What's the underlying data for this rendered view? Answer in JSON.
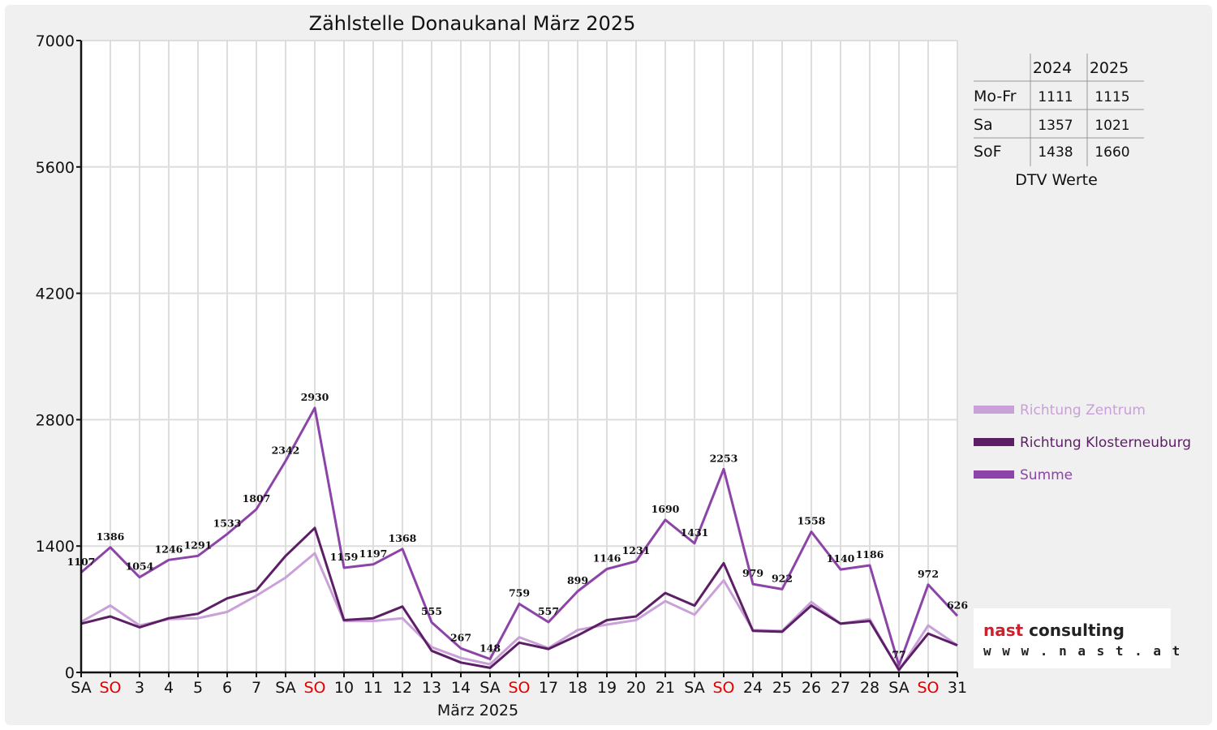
{
  "chart_data": {
    "type": "line",
    "title": "Zählstelle Donaukanal März 2025",
    "xlabel": "März 2025",
    "ylabel": "",
    "ylim": [
      0,
      7000
    ],
    "yticks": [
      0,
      1400,
      2800,
      4200,
      5600,
      7000
    ],
    "ytick_labels": [
      "0",
      "1400",
      "2800",
      "4200",
      "5600",
      "7000"
    ],
    "grid": true,
    "legend_position": "right",
    "categories": [
      "SA",
      "SO",
      "3",
      "4",
      "5",
      "6",
      "7",
      "SA",
      "SO",
      "10",
      "11",
      "12",
      "13",
      "14",
      "SA",
      "SO",
      "17",
      "18",
      "19",
      "20",
      "21",
      "SA",
      "SO",
      "24",
      "25",
      "26",
      "27",
      "28",
      "SA",
      "SO",
      "31"
    ],
    "weekend_categories": [
      1,
      8,
      15,
      22,
      29
    ],
    "series": [
      {
        "name": "Richtung Zentrum",
        "color": "#c9a0d8",
        "values": [
          560,
          740,
          520,
          590,
          600,
          670,
          850,
          1050,
          1320,
          570,
          570,
          600,
          280,
          160,
          90,
          390,
          270,
          470,
          530,
          580,
          790,
          640,
          1020,
          470,
          460,
          780,
          540,
          590,
          20,
          520,
          300
        ]
      },
      {
        "name": "Richtung Klosterneuburg",
        "color": "#5c1f66",
        "values": [
          540,
          620,
          500,
          600,
          650,
          820,
          910,
          1290,
          1600,
          580,
          600,
          730,
          240,
          110,
          50,
          330,
          260,
          410,
          580,
          620,
          880,
          740,
          1210,
          460,
          450,
          740,
          540,
          570,
          30,
          430,
          300
        ]
      },
      {
        "name": "Summe",
        "color": "#8c44a8",
        "values": [
          1107,
          1386,
          1054,
          1246,
          1291,
          1533,
          1807,
          2342,
          2930,
          1159,
          1197,
          1368,
          555,
          267,
          148,
          759,
          557,
          899,
          1146,
          1231,
          1690,
          1431,
          2253,
          979,
          922,
          1558,
          1140,
          1186,
          77,
          972,
          626
        ]
      }
    ],
    "data_labels": [
      "1107",
      "1386",
      "1054",
      "1246",
      "1291",
      "1533",
      "1807",
      "2342",
      "2930",
      "1159",
      "1197",
      "1368",
      "555",
      "267",
      "148",
      "759",
      "557",
      "899",
      "1146",
      "1231",
      "1690",
      "1431",
      "2253",
      "979",
      "922",
      "1558",
      "1140",
      "1186",
      "77",
      "972",
      "626"
    ]
  },
  "dtv_table": {
    "caption": "DTV Werte",
    "columns": [
      "2024",
      "2025"
    ],
    "rows": [
      {
        "label": "Mo-Fr",
        "values": [
          "1111",
          "1115"
        ]
      },
      {
        "label": "Sa",
        "values": [
          "1357",
          "1021"
        ]
      },
      {
        "label": "SoF",
        "values": [
          "1438",
          "1660"
        ]
      }
    ]
  },
  "logo": {
    "line1": "nast consulting",
    "line2": "www.nast.at"
  },
  "colors": {
    "weekend": "#e00000",
    "grid": "#dddddd",
    "frame": "#f0f0f0"
  }
}
